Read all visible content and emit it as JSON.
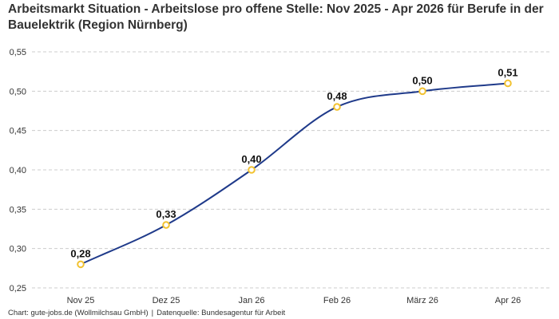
{
  "title": "Arbeitsmarkt Situation - Arbeitslose pro offene Stelle: Nov 2025 - Apr 2026 für Berufe in der Bauelektrik (Region Nürnberg)",
  "footer": {
    "credit": "Chart: gute-jobs.de (Wollmilchsau GmbH)",
    "separator": "|",
    "source": "Datenquelle: Bundesagentur für Arbeit"
  },
  "colors": {
    "line": "#1f3a8a",
    "marker": "#f2c230",
    "grid": "#cccccc"
  },
  "chart_data": {
    "type": "line",
    "title": "Arbeitsmarkt Situation - Arbeitslose pro offene Stelle: Nov 2025 - Apr 2026 für Berufe in der Bauelektrik (Region Nürnberg)",
    "xlabel": "",
    "ylabel": "",
    "categories": [
      "Nov 25",
      "Dez 25",
      "Jan 26",
      "Feb 26",
      "März 26",
      "Apr 26"
    ],
    "values": [
      0.28,
      0.33,
      0.4,
      0.48,
      0.5,
      0.51
    ],
    "data_labels": [
      "0,28",
      "0,33",
      "0,40",
      "0,48",
      "0,50",
      "0,51"
    ],
    "y_ticks": [
      0.25,
      0.3,
      0.35,
      0.4,
      0.45,
      0.5,
      0.55
    ],
    "y_tick_labels": [
      "0,25",
      "0,30",
      "0,35",
      "0,40",
      "0,45",
      "0,50",
      "0,55"
    ],
    "ylim": [
      0.25,
      0.55
    ],
    "grid": true,
    "grid_style": "dashed-horizontal",
    "legend": "none"
  }
}
